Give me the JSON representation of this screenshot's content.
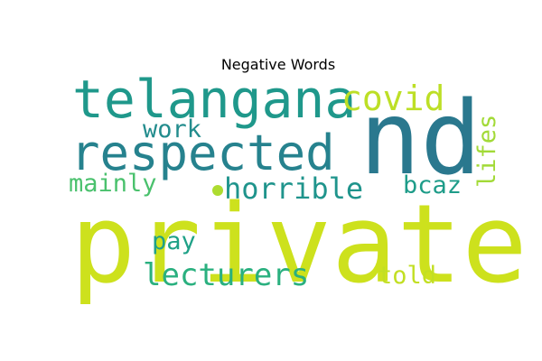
{
  "chart_data": {
    "type": "wordcloud",
    "title": "Negative Words",
    "words": [
      {
        "text": "private",
        "color": "#cde11d"
      },
      {
        "text": "nd",
        "color": "#2a788e"
      },
      {
        "text": "telangana",
        "color": "#1f988b"
      },
      {
        "text": "respected",
        "color": "#26828e"
      },
      {
        "text": "covid",
        "color": "#bddf26"
      },
      {
        "text": "horrible",
        "color": "#1f948c"
      },
      {
        "text": "lecturers",
        "color": "#2ab07f"
      },
      {
        "text": "work",
        "color": "#228c8d"
      },
      {
        "text": "mainly",
        "color": "#4ac16d"
      },
      {
        "text": "lifes",
        "color": "#a2da37"
      },
      {
        "text": "bcaz",
        "color": "#1e9c89"
      },
      {
        "text": "pay",
        "color": "#1fa187"
      },
      {
        "text": "told",
        "color": "#c2df23"
      },
      {
        "text": "",
        "color": "#addc30"
      }
    ]
  }
}
